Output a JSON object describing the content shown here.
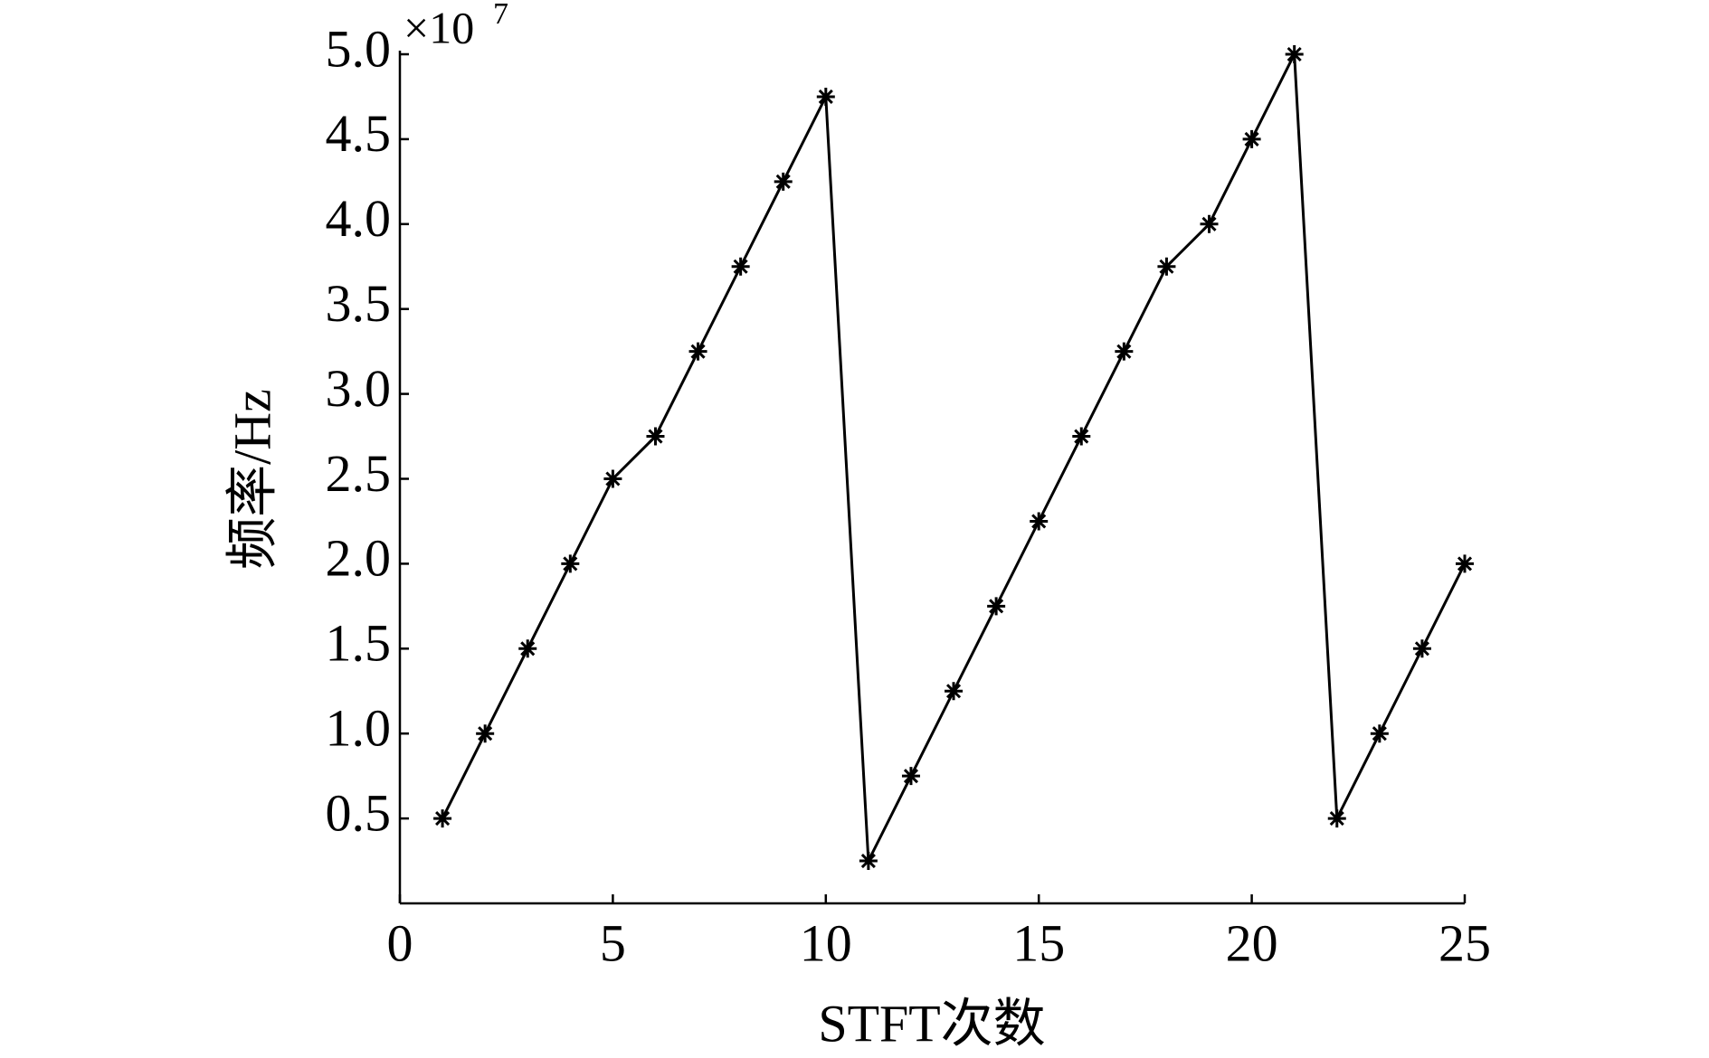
{
  "chart_data": {
    "type": "line",
    "x_label": "STFT次数",
    "y_label": "频率/Hz",
    "y_scale_label": "×10",
    "y_scale_exponent": "7",
    "x": [
      1,
      2,
      3,
      4,
      5,
      6,
      7,
      8,
      9,
      10,
      11,
      12,
      13,
      14,
      15,
      16,
      17,
      18,
      19,
      20,
      21,
      22,
      23,
      24,
      25
    ],
    "values": [
      0.5,
      1.0,
      1.5,
      2.0,
      2.5,
      2.75,
      3.25,
      3.75,
      4.25,
      4.75,
      0.25,
      0.75,
      1.25,
      1.75,
      2.25,
      2.75,
      3.25,
      3.75,
      4.0,
      4.5,
      5.0,
      0.5,
      1.0,
      1.5,
      2.0
    ],
    "color": "#000000",
    "marker": "asterisk",
    "xlim": [
      0,
      25
    ],
    "xticks": [
      0,
      5,
      10,
      15,
      20,
      25
    ],
    "ylim": [
      0,
      5
    ],
    "yticks": [
      0.5,
      {
        "value": 1,
        "label": "1.0"
      },
      1.5,
      {
        "value": 2,
        "label": "2.0"
      },
      2.5,
      {
        "value": 3,
        "label": "3.0"
      },
      3.5,
      {
        "value": 4,
        "label": "4.0"
      },
      4.5,
      {
        "value": 5,
        "label": "5.0"
      }
    ]
  }
}
